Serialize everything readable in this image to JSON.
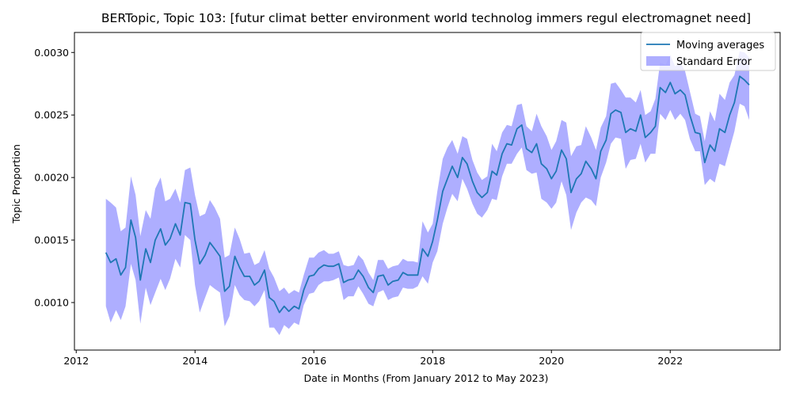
{
  "chart_data": {
    "type": "line",
    "title": "BERTopic, Topic 103: [futur climat better environment world technolog immers regul electromagnet need]",
    "xlabel": "Date in Months (From January 2012 to May 2023)",
    "ylabel": "Topic Proportion",
    "xlim": [
      2011.97,
      2023.85
    ],
    "ylim": [
      0.00062,
      0.00316
    ],
    "xticks": [
      2012,
      2014,
      2016,
      2018,
      2020,
      2022
    ],
    "yticks": [
      0.001,
      0.0015,
      0.002,
      0.0025,
      0.003
    ],
    "ytick_labels": [
      "0.0010",
      "0.0015",
      "0.0020",
      "0.0025",
      "0.0030"
    ],
    "grid": false,
    "legend": {
      "placement": "top-right",
      "entries": [
        "Moving averages",
        "Standard Error"
      ]
    },
    "colors": {
      "line": "#1f77b4",
      "band": "#8c8cff"
    },
    "series": [
      {
        "name": "Moving averages",
        "x": [
          2012.5,
          2012.58,
          2012.67,
          2012.75,
          2012.83,
          2012.92,
          2013,
          2013.08,
          2013.17,
          2013.25,
          2013.33,
          2013.42,
          2013.5,
          2013.58,
          2013.67,
          2013.75,
          2013.83,
          2013.92,
          2014,
          2014.08,
          2014.17,
          2014.25,
          2014.33,
          2014.42,
          2014.5,
          2014.58,
          2014.67,
          2014.75,
          2014.83,
          2014.92,
          2015,
          2015.08,
          2015.17,
          2015.25,
          2015.33,
          2015.42,
          2015.5,
          2015.58,
          2015.67,
          2015.75,
          2015.83,
          2015.92,
          2016,
          2016.08,
          2016.17,
          2016.25,
          2016.33,
          2016.42,
          2016.5,
          2016.58,
          2016.67,
          2016.75,
          2016.83,
          2016.92,
          2017,
          2017.08,
          2017.17,
          2017.25,
          2017.33,
          2017.42,
          2017.5,
          2017.58,
          2017.67,
          2017.75,
          2017.83,
          2017.92,
          2018,
          2018.08,
          2018.17,
          2018.25,
          2018.33,
          2018.42,
          2018.5,
          2018.58,
          2018.67,
          2018.75,
          2018.83,
          2018.92,
          2019,
          2019.08,
          2019.17,
          2019.25,
          2019.33,
          2019.42,
          2019.5,
          2019.58,
          2019.67,
          2019.75,
          2019.83,
          2019.92,
          2020,
          2020.08,
          2020.17,
          2020.25,
          2020.33,
          2020.42,
          2020.5,
          2020.58,
          2020.67,
          2020.75,
          2020.83,
          2020.92,
          2021,
          2021.08,
          2021.17,
          2021.25,
          2021.33,
          2021.42,
          2021.5,
          2021.58,
          2021.67,
          2021.75,
          2021.83,
          2021.92,
          2022,
          2022.08,
          2022.17,
          2022.25,
          2022.33,
          2022.42,
          2022.5,
          2022.58,
          2022.67,
          2022.75,
          2022.83,
          2022.92,
          2023,
          2023.08,
          2023.17,
          2023.25,
          2023.33
        ],
        "values": [
          0.0014,
          0.00132,
          0.00135,
          0.00122,
          0.00128,
          0.00166,
          0.00152,
          0.00118,
          0.00143,
          0.00132,
          0.0015,
          0.00159,
          0.00146,
          0.00151,
          0.00163,
          0.00154,
          0.0018,
          0.00179,
          0.0015,
          0.00131,
          0.00138,
          0.00148,
          0.00143,
          0.00137,
          0.00109,
          0.00113,
          0.00137,
          0.00128,
          0.00121,
          0.00121,
          0.00114,
          0.00117,
          0.00126,
          0.00104,
          0.00101,
          0.00092,
          0.00097,
          0.00093,
          0.00097,
          0.00095,
          0.0011,
          0.00121,
          0.00122,
          0.00127,
          0.0013,
          0.00129,
          0.00129,
          0.00131,
          0.00116,
          0.00118,
          0.00119,
          0.00126,
          0.00121,
          0.00112,
          0.00108,
          0.00121,
          0.00122,
          0.00114,
          0.00117,
          0.00118,
          0.00124,
          0.00122,
          0.00122,
          0.00122,
          0.00143,
          0.00137,
          0.00149,
          0.00166,
          0.00189,
          0.00199,
          0.00209,
          0.002,
          0.00216,
          0.00211,
          0.00197,
          0.00188,
          0.00184,
          0.00188,
          0.00205,
          0.00202,
          0.00219,
          0.00227,
          0.00226,
          0.00239,
          0.00242,
          0.00223,
          0.0022,
          0.00227,
          0.00211,
          0.00207,
          0.00199,
          0.00205,
          0.00222,
          0.00215,
          0.00188,
          0.00199,
          0.00203,
          0.00213,
          0.00207,
          0.00199,
          0.00221,
          0.0023,
          0.00251,
          0.00254,
          0.00252,
          0.00236,
          0.00239,
          0.00237,
          0.0025,
          0.00232,
          0.00236,
          0.00241,
          0.00272,
          0.00268,
          0.00276,
          0.00267,
          0.0027,
          0.00266,
          0.0025,
          0.00236,
          0.00235,
          0.00212,
          0.00226,
          0.00221,
          0.00239,
          0.00236,
          0.0025,
          0.0026,
          0.00281,
          0.00278,
          0.00274
        ]
      },
      {
        "name": "Standard Error",
        "x": [
          2012.5,
          2012.58,
          2012.67,
          2012.75,
          2012.83,
          2012.92,
          2013,
          2013.08,
          2013.17,
          2013.25,
          2013.33,
          2013.42,
          2013.5,
          2013.58,
          2013.67,
          2013.75,
          2013.83,
          2013.92,
          2014,
          2014.08,
          2014.17,
          2014.25,
          2014.33,
          2014.42,
          2014.5,
          2014.58,
          2014.67,
          2014.75,
          2014.83,
          2014.92,
          2015,
          2015.08,
          2015.17,
          2015.25,
          2015.33,
          2015.42,
          2015.5,
          2015.58,
          2015.67,
          2015.75,
          2015.83,
          2015.92,
          2016,
          2016.08,
          2016.17,
          2016.25,
          2016.33,
          2016.42,
          2016.5,
          2016.58,
          2016.67,
          2016.75,
          2016.83,
          2016.92,
          2017,
          2017.08,
          2017.17,
          2017.25,
          2017.33,
          2017.42,
          2017.5,
          2017.58,
          2017.67,
          2017.75,
          2017.83,
          2017.92,
          2018,
          2018.08,
          2018.17,
          2018.25,
          2018.33,
          2018.42,
          2018.5,
          2018.58,
          2018.67,
          2018.75,
          2018.83,
          2018.92,
          2019,
          2019.08,
          2019.17,
          2019.25,
          2019.33,
          2019.42,
          2019.5,
          2019.58,
          2019.67,
          2019.75,
          2019.83,
          2019.92,
          2020,
          2020.08,
          2020.17,
          2020.25,
          2020.33,
          2020.42,
          2020.5,
          2020.58,
          2020.67,
          2020.75,
          2020.83,
          2020.92,
          2021,
          2021.08,
          2021.17,
          2021.25,
          2021.33,
          2021.42,
          2021.5,
          2021.58,
          2021.67,
          2021.75,
          2021.83,
          2021.92,
          2022,
          2022.08,
          2022.17,
          2022.25,
          2022.33,
          2022.42,
          2022.5,
          2022.58,
          2022.67,
          2022.75,
          2022.83,
          2022.92,
          2023,
          2023.08,
          2023.17,
          2023.25,
          2023.33
        ],
        "upper": [
          0.00183,
          0.0018,
          0.00176,
          0.00157,
          0.0016,
          0.00201,
          0.00186,
          0.00153,
          0.00174,
          0.00167,
          0.00191,
          0.002,
          0.00181,
          0.00183,
          0.00191,
          0.0018,
          0.00206,
          0.00208,
          0.00186,
          0.00169,
          0.00171,
          0.00182,
          0.00176,
          0.00167,
          0.00136,
          0.00138,
          0.0016,
          0.00151,
          0.00139,
          0.0014,
          0.0013,
          0.00132,
          0.00142,
          0.00127,
          0.0012,
          0.00109,
          0.00112,
          0.00107,
          0.0011,
          0.00108,
          0.00122,
          0.00136,
          0.00136,
          0.0014,
          0.00142,
          0.00139,
          0.00139,
          0.00141,
          0.0013,
          0.00129,
          0.0013,
          0.00138,
          0.00134,
          0.00124,
          0.00118,
          0.00134,
          0.00134,
          0.00127,
          0.00129,
          0.0013,
          0.00135,
          0.00133,
          0.00133,
          0.00132,
          0.00165,
          0.00156,
          0.00163,
          0.00189,
          0.00215,
          0.00224,
          0.0023,
          0.00219,
          0.00233,
          0.00231,
          0.00214,
          0.00204,
          0.00198,
          0.00201,
          0.00227,
          0.00221,
          0.00236,
          0.00242,
          0.00241,
          0.00258,
          0.00259,
          0.00241,
          0.00237,
          0.00251,
          0.00241,
          0.00233,
          0.00222,
          0.00229,
          0.00246,
          0.00244,
          0.00217,
          0.00225,
          0.00226,
          0.00241,
          0.00232,
          0.00222,
          0.0024,
          0.00249,
          0.00275,
          0.00276,
          0.0027,
          0.00264,
          0.00264,
          0.0026,
          0.0027,
          0.0025,
          0.00253,
          0.00263,
          0.00292,
          0.0029,
          0.00298,
          0.00289,
          0.00292,
          0.00285,
          0.00269,
          0.00251,
          0.00249,
          0.00229,
          0.00253,
          0.00245,
          0.00267,
          0.00262,
          0.00276,
          0.00282,
          0.00301,
          0.003,
          0.00296
        ],
        "lower": [
          0.00097,
          0.00084,
          0.00094,
          0.00086,
          0.00097,
          0.00131,
          0.00118,
          0.00083,
          0.00112,
          0.00098,
          0.00108,
          0.00119,
          0.0011,
          0.00119,
          0.00135,
          0.00128,
          0.00154,
          0.0015,
          0.00114,
          0.00092,
          0.00104,
          0.00114,
          0.00111,
          0.00108,
          0.00081,
          0.00089,
          0.00114,
          0.00106,
          0.00102,
          0.00101,
          0.00097,
          0.00101,
          0.0011,
          0.0008,
          0.0008,
          0.00074,
          0.00082,
          0.00079,
          0.00084,
          0.00082,
          0.00098,
          0.00107,
          0.00108,
          0.00114,
          0.00117,
          0.00117,
          0.00118,
          0.0012,
          0.00102,
          0.00105,
          0.00105,
          0.00113,
          0.00107,
          0.00099,
          0.00097,
          0.00108,
          0.0011,
          0.00102,
          0.00104,
          0.00105,
          0.00112,
          0.00111,
          0.00111,
          0.00113,
          0.00121,
          0.00115,
          0.00132,
          0.00141,
          0.00163,
          0.00176,
          0.00187,
          0.00181,
          0.00199,
          0.00191,
          0.00179,
          0.00171,
          0.00168,
          0.00174,
          0.00183,
          0.00182,
          0.00201,
          0.00211,
          0.00211,
          0.00219,
          0.00224,
          0.00206,
          0.00203,
          0.00204,
          0.00183,
          0.0018,
          0.00175,
          0.0018,
          0.00197,
          0.00186,
          0.00158,
          0.00172,
          0.0018,
          0.00184,
          0.00182,
          0.00177,
          0.002,
          0.00212,
          0.00227,
          0.00232,
          0.00231,
          0.00207,
          0.00214,
          0.00215,
          0.00227,
          0.00212,
          0.00219,
          0.00219,
          0.00251,
          0.00246,
          0.00254,
          0.00246,
          0.00251,
          0.00246,
          0.00231,
          0.00221,
          0.00221,
          0.00194,
          0.00199,
          0.00196,
          0.00211,
          0.00209,
          0.00223,
          0.00237,
          0.00259,
          0.00257,
          0.00246
        ]
      }
    ]
  }
}
